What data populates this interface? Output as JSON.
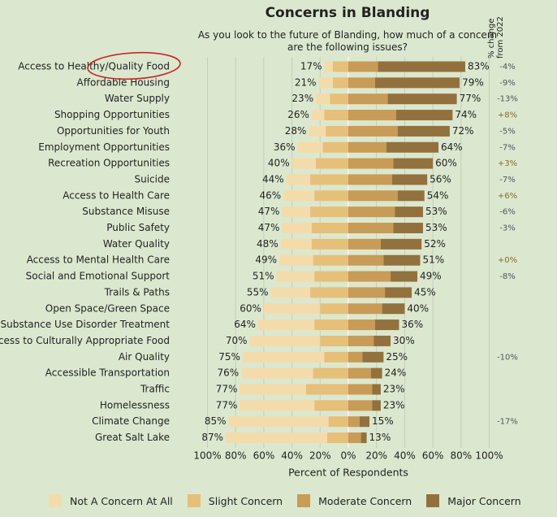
{
  "chart_data": {
    "type": "bar",
    "title": "Concerns in Blanding",
    "subtitle_line1": "As you look to the future of Blanding, how much of a concern",
    "subtitle_line2": "are the following issues?",
    "change_header_line1": "% change",
    "change_header_line2": "from 2022",
    "xlabel": "Percent of Respondents",
    "x_ticks": [
      "100%",
      "80%",
      "60%",
      "40%",
      "20%",
      "0%",
      "20%",
      "40%",
      "60%",
      "80%",
      "100%"
    ],
    "xlim": [
      -100,
      100
    ],
    "grid": true,
    "legend_position": "bottom",
    "series_names": [
      "Not A Concern At All",
      "Slight Concern",
      "Moderate Concern",
      "Major Concern"
    ],
    "colors": {
      "not_concern": "#f3dcaa",
      "slight": "#e6bf79",
      "moderate": "#c89b56",
      "major": "#93713d",
      "change_positive": "#8a6a2a",
      "change_negative": "#555555",
      "highlight_circle": "#c62828"
    },
    "highlighted_category": "Access to Healthy/Quality Food",
    "categories": [
      {
        "label": "Access to Healthy/Quality Food",
        "not": 6,
        "slight": 11,
        "moderate": 21,
        "major": 62,
        "left_pct": "17%",
        "right_pct": "83%",
        "change": "-4%"
      },
      {
        "label": "Affordable Housing",
        "not": 10,
        "slight": 11,
        "moderate": 19,
        "major": 60,
        "left_pct": "21%",
        "right_pct": "79%",
        "change": "-9%"
      },
      {
        "label": "Water Supply",
        "not": 10,
        "slight": 13,
        "moderate": 28,
        "major": 49,
        "left_pct": "23%",
        "right_pct": "77%",
        "change": "-13%"
      },
      {
        "label": "Shopping Opportunities",
        "not": 9,
        "slight": 17,
        "moderate": 34,
        "major": 40,
        "left_pct": "26%",
        "right_pct": "74%",
        "change": "+8%"
      },
      {
        "label": "Opportunities for Youth",
        "not": 12,
        "slight": 16,
        "moderate": 35,
        "major": 37,
        "left_pct": "28%",
        "right_pct": "72%",
        "change": "-5%"
      },
      {
        "label": "Employment Opportunities",
        "not": 18,
        "slight": 18,
        "moderate": 27,
        "major": 37,
        "left_pct": "36%",
        "right_pct": "64%",
        "change": "-7%"
      },
      {
        "label": "Recreation Opportunities",
        "not": 17,
        "slight": 23,
        "moderate": 32,
        "major": 28,
        "left_pct": "40%",
        "right_pct": "60%",
        "change": "+3%"
      },
      {
        "label": "Suicide",
        "not": 17,
        "slight": 27,
        "moderate": 31,
        "major": 25,
        "left_pct": "44%",
        "right_pct": "56%",
        "change": "-7%"
      },
      {
        "label": "Access to Health Care",
        "not": 22,
        "slight": 24,
        "moderate": 35,
        "major": 19,
        "left_pct": "46%",
        "right_pct": "54%",
        "change": "+6%"
      },
      {
        "label": "Substance Misuse",
        "not": 20,
        "slight": 27,
        "moderate": 33,
        "major": 20,
        "left_pct": "47%",
        "right_pct": "53%",
        "change": "-6%"
      },
      {
        "label": "Public Safety",
        "not": 21,
        "slight": 26,
        "moderate": 32,
        "major": 21,
        "left_pct": "47%",
        "right_pct": "53%",
        "change": "-3%"
      },
      {
        "label": "Water Quality",
        "not": 22,
        "slight": 26,
        "moderate": 23,
        "major": 29,
        "left_pct": "48%",
        "right_pct": "52%",
        "change": ""
      },
      {
        "label": "Access to Mental Health Care",
        "not": 24,
        "slight": 25,
        "moderate": 25,
        "major": 26,
        "left_pct": "49%",
        "right_pct": "51%",
        "change": "+0%"
      },
      {
        "label": "Social and Emotional Support",
        "not": 27,
        "slight": 24,
        "moderate": 30,
        "major": 19,
        "left_pct": "51%",
        "right_pct": "49%",
        "change": "-8%"
      },
      {
        "label": "Trails & Paths",
        "not": 28,
        "slight": 27,
        "moderate": 26,
        "major": 19,
        "left_pct": "55%",
        "right_pct": "45%",
        "change": ""
      },
      {
        "label": "Open Space/Green Space",
        "not": 40,
        "slight": 20,
        "moderate": 24,
        "major": 16,
        "left_pct": "60%",
        "right_pct": "40%",
        "change": ""
      },
      {
        "label": "Access to Substance Use Disorder Treatment",
        "not": 40,
        "slight": 24,
        "moderate": 19,
        "major": 17,
        "left_pct": "64%",
        "right_pct": "36%",
        "change": ""
      },
      {
        "label": "Access to Culturally Appropriate Food",
        "not": 50,
        "slight": 20,
        "moderate": 18,
        "major": 12,
        "left_pct": "70%",
        "right_pct": "30%",
        "change": ""
      },
      {
        "label": "Air Quality",
        "not": 58,
        "slight": 17,
        "moderate": 10,
        "major": 15,
        "left_pct": "75%",
        "right_pct": "25%",
        "change": "-10%"
      },
      {
        "label": "Accessible Transportation",
        "not": 51,
        "slight": 25,
        "moderate": 16,
        "major": 8,
        "left_pct": "76%",
        "right_pct": "24%",
        "change": ""
      },
      {
        "label": "Traffic",
        "not": 47,
        "slight": 30,
        "moderate": 17,
        "major": 6,
        "left_pct": "77%",
        "right_pct": "23%",
        "change": ""
      },
      {
        "label": "Homelessness",
        "not": 53,
        "slight": 24,
        "moderate": 17,
        "major": 6,
        "left_pct": "77%",
        "right_pct": "23%",
        "change": ""
      },
      {
        "label": "Climate Change",
        "not": 71,
        "slight": 14,
        "moderate": 8,
        "major": 7,
        "left_pct": "85%",
        "right_pct": "15%",
        "change": "-17%"
      },
      {
        "label": "Great Salt Lake",
        "not": 72,
        "slight": 15,
        "moderate": 9,
        "major": 4,
        "left_pct": "87%",
        "right_pct": "13%",
        "change": ""
      }
    ]
  }
}
